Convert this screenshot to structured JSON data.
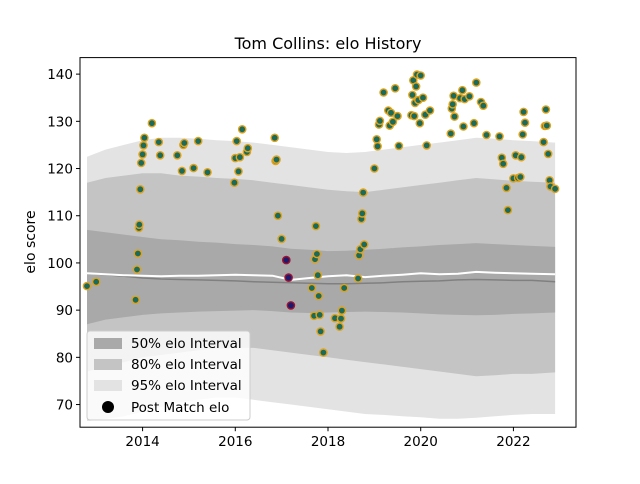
{
  "chart_data": {
    "type": "scatter",
    "title": "Tom Collins: elo History",
    "xlabel": "",
    "ylabel": "elo score",
    "xlim": [
      2012.65,
      2023.35
    ],
    "ylim": [
      65.2,
      143.5
    ],
    "x_ticks": [
      2014,
      2016,
      2018,
      2020,
      2022
    ],
    "y_ticks": [
      70,
      80,
      90,
      100,
      110,
      120,
      130,
      140
    ],
    "legend": {
      "position": "lower-left",
      "entries": [
        "50% elo Interval",
        "80% elo Interval",
        "95% elo Interval",
        "Post Match elo"
      ]
    },
    "colors": {
      "band_50": "#a9a9a9",
      "band_80": "#c4c4c4",
      "band_95": "#e3e3e3",
      "median_line": "#808080",
      "mean_line": "#ffffff",
      "point_fill": "#1a6b5c",
      "point_edge": "#e0a21c",
      "highlight_fill": "#1a1a6e",
      "highlight_edge": "#a01030"
    },
    "bands": {
      "x": [
        2012.8,
        2013.2,
        2013.6,
        2014.0,
        2014.4,
        2014.8,
        2015.2,
        2015.6,
        2016.0,
        2016.4,
        2016.8,
        2017.2,
        2017.6,
        2018.0,
        2018.4,
        2018.8,
        2019.2,
        2019.6,
        2020.0,
        2020.4,
        2020.8,
        2021.2,
        2021.6,
        2022.0,
        2022.4,
        2022.9
      ],
      "median": [
        97.8,
        97.5,
        97.2,
        96.8,
        96.6,
        96.5,
        96.4,
        96.3,
        96.2,
        96.0,
        95.9,
        95.8,
        95.7,
        95.6,
        95.6,
        95.7,
        95.8,
        96.0,
        96.1,
        96.2,
        96.4,
        96.5,
        96.4,
        96.3,
        96.3,
        96.0
      ],
      "mean": [
        97.8,
        97.6,
        97.4,
        97.3,
        97.2,
        97.3,
        97.3,
        97.4,
        97.5,
        97.4,
        97.3,
        96.4,
        96.8,
        97.2,
        97.4,
        97.0,
        97.3,
        97.5,
        97.8,
        97.6,
        97.7,
        98.1,
        97.9,
        97.8,
        97.7,
        97.6
      ],
      "p50_low": [
        87.0,
        88.0,
        88.5,
        89.0,
        89.3,
        89.5,
        89.7,
        89.8,
        89.9,
        90.0,
        89.8,
        89.5,
        89.4,
        89.5,
        89.6,
        89.7,
        89.6,
        89.5,
        89.3,
        89.1,
        89.0,
        88.9,
        89.0,
        89.2,
        89.3,
        89.5
      ],
      "p50_high": [
        107.0,
        106.5,
        106.0,
        105.5,
        105.0,
        104.8,
        104.5,
        104.3,
        104.0,
        103.8,
        103.5,
        103.0,
        102.8,
        102.5,
        102.6,
        102.8,
        103.0,
        103.3,
        103.5,
        103.8,
        104.0,
        104.2,
        104.0,
        103.8,
        103.6,
        103.4
      ],
      "p80_low": [
        77.0,
        78.0,
        79.0,
        80.0,
        80.5,
        81.0,
        81.5,
        81.8,
        82.0,
        82.0,
        81.5,
        81.0,
        80.5,
        80.0,
        79.5,
        79.0,
        78.5,
        78.0,
        77.5,
        77.0,
        76.5,
        76.0,
        76.2,
        76.5,
        76.5,
        76.8
      ],
      "p80_high": [
        117.0,
        118.0,
        118.5,
        119.0,
        119.0,
        118.5,
        118.3,
        118.0,
        117.8,
        117.5,
        117.0,
        116.5,
        116.0,
        115.5,
        115.2,
        115.0,
        115.5,
        116.0,
        116.5,
        117.0,
        117.5,
        118.0,
        117.7,
        117.4,
        117.2,
        117.0
      ],
      "p95_low": [
        66.5,
        67.0,
        67.5,
        68.5,
        69.5,
        70.5,
        71.0,
        71.5,
        71.5,
        71.0,
        70.5,
        70.0,
        69.5,
        69.0,
        68.5,
        68.0,
        67.8,
        67.5,
        67.3,
        67.0,
        67.0,
        67.2,
        67.5,
        67.8,
        68.0,
        68.0
      ],
      "p95_high": [
        122.5,
        124.0,
        125.0,
        126.0,
        126.5,
        126.5,
        126.3,
        126.0,
        125.8,
        125.5,
        125.0,
        124.5,
        124.0,
        123.5,
        123.3,
        123.5,
        124.0,
        124.5,
        125.0,
        125.5,
        126.0,
        126.5,
        126.3,
        126.0,
        125.8,
        125.5
      ]
    },
    "points": [
      {
        "x": 2012.8,
        "y": 95.1
      },
      {
        "x": 2013.0,
        "y": 96.0
      },
      {
        "x": 2013.85,
        "y": 92.2
      },
      {
        "x": 2013.88,
        "y": 98.6
      },
      {
        "x": 2013.9,
        "y": 102.0
      },
      {
        "x": 2013.92,
        "y": 107.4
      },
      {
        "x": 2013.93,
        "y": 108.1
      },
      {
        "x": 2013.95,
        "y": 115.6
      },
      {
        "x": 2013.97,
        "y": 121.2
      },
      {
        "x": 2014.0,
        "y": 123.0
      },
      {
        "x": 2014.02,
        "y": 124.9
      },
      {
        "x": 2014.04,
        "y": 126.5
      },
      {
        "x": 2014.2,
        "y": 129.6
      },
      {
        "x": 2014.35,
        "y": 125.6
      },
      {
        "x": 2014.38,
        "y": 122.8
      },
      {
        "x": 2014.75,
        "y": 122.8
      },
      {
        "x": 2014.85,
        "y": 119.5
      },
      {
        "x": 2014.88,
        "y": 125.0
      },
      {
        "x": 2014.9,
        "y": 125.4
      },
      {
        "x": 2015.1,
        "y": 120.1
      },
      {
        "x": 2015.2,
        "y": 125.8
      },
      {
        "x": 2015.4,
        "y": 119.2
      },
      {
        "x": 2015.98,
        "y": 117.0
      },
      {
        "x": 2016.0,
        "y": 122.2
      },
      {
        "x": 2016.03,
        "y": 125.8
      },
      {
        "x": 2016.07,
        "y": 119.4
      },
      {
        "x": 2016.1,
        "y": 122.4
      },
      {
        "x": 2016.15,
        "y": 128.3
      },
      {
        "x": 2016.25,
        "y": 123.5
      },
      {
        "x": 2016.27,
        "y": 124.3
      },
      {
        "x": 2016.85,
        "y": 126.5
      },
      {
        "x": 2016.87,
        "y": 121.6
      },
      {
        "x": 2016.89,
        "y": 121.9
      },
      {
        "x": 2016.92,
        "y": 110.0
      },
      {
        "x": 2017.0,
        "y": 105.1
      },
      {
        "x": 2017.65,
        "y": 94.7
      },
      {
        "x": 2017.7,
        "y": 88.8
      },
      {
        "x": 2017.72,
        "y": 100.8
      },
      {
        "x": 2017.74,
        "y": 107.8
      },
      {
        "x": 2017.76,
        "y": 101.9
      },
      {
        "x": 2017.78,
        "y": 97.4
      },
      {
        "x": 2017.8,
        "y": 93.0
      },
      {
        "x": 2017.82,
        "y": 89.0
      },
      {
        "x": 2017.84,
        "y": 85.5
      },
      {
        "x": 2017.9,
        "y": 81.0
      },
      {
        "x": 2018.15,
        "y": 88.3
      },
      {
        "x": 2018.25,
        "y": 86.5
      },
      {
        "x": 2018.28,
        "y": 88.2
      },
      {
        "x": 2018.3,
        "y": 89.9
      },
      {
        "x": 2018.35,
        "y": 94.7
      },
      {
        "x": 2018.65,
        "y": 96.7
      },
      {
        "x": 2018.67,
        "y": 101.6
      },
      {
        "x": 2018.7,
        "y": 102.9
      },
      {
        "x": 2018.72,
        "y": 109.3
      },
      {
        "x": 2018.74,
        "y": 110.5
      },
      {
        "x": 2018.76,
        "y": 114.9
      },
      {
        "x": 2018.78,
        "y": 103.9
      },
      {
        "x": 2019.0,
        "y": 120.0
      },
      {
        "x": 2019.05,
        "y": 126.2
      },
      {
        "x": 2019.07,
        "y": 124.7
      },
      {
        "x": 2019.1,
        "y": 129.3
      },
      {
        "x": 2019.12,
        "y": 130.1
      },
      {
        "x": 2019.2,
        "y": 136.1
      },
      {
        "x": 2019.3,
        "y": 132.3
      },
      {
        "x": 2019.33,
        "y": 129.1
      },
      {
        "x": 2019.36,
        "y": 131.8
      },
      {
        "x": 2019.4,
        "y": 129.9
      },
      {
        "x": 2019.45,
        "y": 137.0
      },
      {
        "x": 2019.5,
        "y": 131.1
      },
      {
        "x": 2019.53,
        "y": 124.8
      },
      {
        "x": 2019.8,
        "y": 131.3
      },
      {
        "x": 2019.82,
        "y": 135.6
      },
      {
        "x": 2019.84,
        "y": 138.7
      },
      {
        "x": 2019.86,
        "y": 131.1
      },
      {
        "x": 2019.88,
        "y": 133.9
      },
      {
        "x": 2019.9,
        "y": 137.4
      },
      {
        "x": 2019.92,
        "y": 139.9
      },
      {
        "x": 2019.95,
        "y": 134.5
      },
      {
        "x": 2019.98,
        "y": 129.6
      },
      {
        "x": 2020.0,
        "y": 139.7
      },
      {
        "x": 2020.05,
        "y": 135.0
      },
      {
        "x": 2020.1,
        "y": 131.4
      },
      {
        "x": 2020.13,
        "y": 124.9
      },
      {
        "x": 2020.2,
        "y": 132.3
      },
      {
        "x": 2020.65,
        "y": 127.4
      },
      {
        "x": 2020.67,
        "y": 132.7
      },
      {
        "x": 2020.69,
        "y": 133.6
      },
      {
        "x": 2020.71,
        "y": 135.4
      },
      {
        "x": 2020.73,
        "y": 131.0
      },
      {
        "x": 2020.85,
        "y": 134.9
      },
      {
        "x": 2020.9,
        "y": 136.6
      },
      {
        "x": 2020.92,
        "y": 128.9
      },
      {
        "x": 2020.95,
        "y": 134.7
      },
      {
        "x": 2021.05,
        "y": 135.3
      },
      {
        "x": 2021.15,
        "y": 129.6
      },
      {
        "x": 2021.2,
        "y": 138.2
      },
      {
        "x": 2021.3,
        "y": 134.1
      },
      {
        "x": 2021.35,
        "y": 133.3
      },
      {
        "x": 2021.42,
        "y": 127.1
      },
      {
        "x": 2021.7,
        "y": 126.8
      },
      {
        "x": 2021.75,
        "y": 122.3
      },
      {
        "x": 2021.78,
        "y": 121.0
      },
      {
        "x": 2021.85,
        "y": 115.9
      },
      {
        "x": 2021.88,
        "y": 111.2
      },
      {
        "x": 2022.0,
        "y": 117.9
      },
      {
        "x": 2022.05,
        "y": 122.8
      },
      {
        "x": 2022.1,
        "y": 118.0
      },
      {
        "x": 2022.15,
        "y": 118.2
      },
      {
        "x": 2022.17,
        "y": 122.4
      },
      {
        "x": 2022.2,
        "y": 127.2
      },
      {
        "x": 2022.22,
        "y": 132.0
      },
      {
        "x": 2022.25,
        "y": 129.7
      },
      {
        "x": 2022.65,
        "y": 125.6
      },
      {
        "x": 2022.68,
        "y": 129.0
      },
      {
        "x": 2022.7,
        "y": 132.5
      },
      {
        "x": 2022.72,
        "y": 129.1
      },
      {
        "x": 2022.75,
        "y": 123.1
      },
      {
        "x": 2022.78,
        "y": 117.5
      },
      {
        "x": 2022.8,
        "y": 116.2
      },
      {
        "x": 2022.9,
        "y": 115.7
      }
    ],
    "highlighted_points": [
      {
        "x": 2017.1,
        "y": 100.6
      },
      {
        "x": 2017.15,
        "y": 96.9
      },
      {
        "x": 2017.2,
        "y": 91.0
      }
    ]
  }
}
